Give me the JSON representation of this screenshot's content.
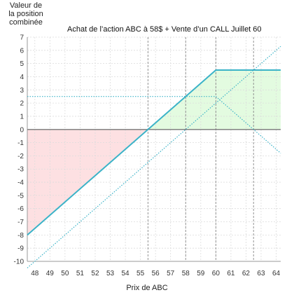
{
  "chart_data": {
    "type": "line",
    "title": "Achat de l’action ABC à 58$ + Vente d’un CALL Juillet 60",
    "ylabel": [
      "Valeur de",
      "la position",
      "combinée"
    ],
    "xlabel": "Prix de ABC",
    "xlim": [
      47.5,
      64.3
    ],
    "ylim": [
      -10,
      7
    ],
    "xticks": [
      48,
      49,
      50,
      51,
      52,
      53,
      54,
      55,
      56,
      57,
      58,
      59,
      60,
      61,
      62,
      63,
      64
    ],
    "yticks": [
      7,
      6,
      5,
      4,
      3,
      2,
      1,
      0,
      -1,
      -2,
      -3,
      -4,
      -5,
      -6,
      -7,
      -8,
      -9,
      -10
    ],
    "grid": true,
    "series": [
      {
        "role": "combined",
        "color": "#3bb3c8",
        "style": "solid",
        "x": [
          47.5,
          60,
          64.3
        ],
        "y": [
          -8,
          4.5,
          4.5
        ]
      },
      {
        "role": "stock",
        "color": "#3bb3c8",
        "style": "dotted",
        "x": [
          47.5,
          64.3
        ],
        "y": [
          -10.5,
          6.3
        ]
      },
      {
        "role": "short-call",
        "color": "#3bb3c8",
        "style": "dotted",
        "x": [
          47.5,
          60,
          64.3
        ],
        "y": [
          2.5,
          2.5,
          -1.8
        ]
      }
    ],
    "loss_region_color": "#fde0e2",
    "profit_region_color": "#e3fbe0",
    "zero_line_color": "#777777",
    "axis_color": "#999999"
  }
}
